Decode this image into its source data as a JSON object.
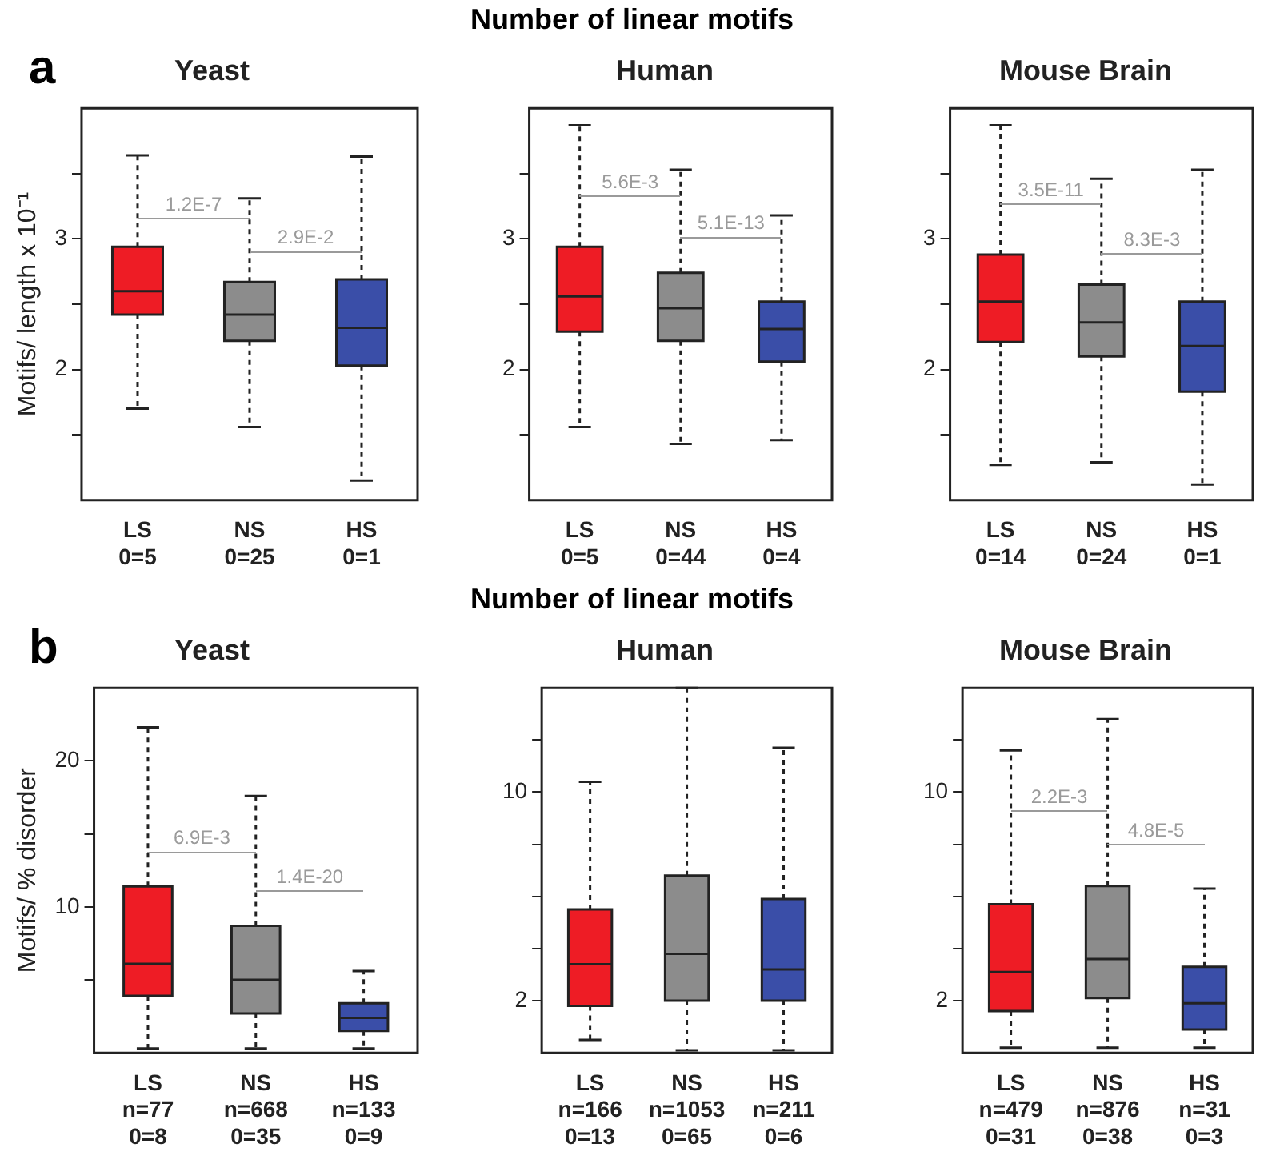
{
  "chart_data": [
    {
      "type": "box",
      "title": "Yeast",
      "ylabel": "Motifs/ length x 10⁻¹",
      "categories": [
        "LS\n0=5",
        "NS\n0=25",
        "HS\n0=1"
      ],
      "colors": [
        "#ee1c25",
        "#8c8c8c",
        "#3a4ea8"
      ],
      "line_style": "dashed",
      "ylim": [
        1,
        4
      ],
      "yticks": [
        {
          "value": 1.5,
          "label": null
        },
        2,
        {
          "value": 2.5,
          "label": null
        },
        3,
        {
          "value": 3.5,
          "label": null
        }
      ],
      "boxes": [
        {
          "low": 1.7,
          "q1": 2.42,
          "median": 2.6,
          "q3": 2.94,
          "high": 3.64
        },
        {
          "low": 1.56,
          "q1": 2.22,
          "median": 2.42,
          "q3": 2.67,
          "high": 3.31
        },
        {
          "low": 1.15,
          "q1": 2.03,
          "median": 2.32,
          "q3": 2.69,
          "high": 3.63
        }
      ],
      "annotations": [
        "a",
        "Number of linear motifs",
        {
          "text": "1.2E-7",
          "x": "LS\n0=5",
          "y": 3.16
        },
        {
          "text": "2.9E-2",
          "x": "NS\n0=25",
          "y": 2.91
        }
      ]
    },
    {
      "type": "box",
      "title": "Human",
      "categories": [
        "LS\n0=5",
        "NS\n0=44",
        "HS\n0=4"
      ],
      "colors": [
        "#ee1c25",
        "#8c8c8c",
        "#3a4ea8"
      ],
      "line_style": "dashed",
      "ylim": [
        1,
        4
      ],
      "yticks": [
        {
          "value": 1.5,
          "label": null
        },
        2,
        {
          "value": 2.5,
          "label": null
        },
        3,
        {
          "value": 3.5,
          "label": null
        }
      ],
      "boxes": [
        {
          "low": 1.56,
          "q1": 2.29,
          "median": 2.56,
          "q3": 2.94,
          "high": 3.87
        },
        {
          "low": 1.43,
          "q1": 2.22,
          "median": 2.47,
          "q3": 2.74,
          "high": 3.53
        },
        {
          "low": 1.46,
          "q1": 2.06,
          "median": 2.31,
          "q3": 2.52,
          "high": 3.18
        }
      ],
      "annotations": [
        {
          "text": "5.6E-3",
          "x": "LS\n0=5",
          "y": 3.33
        },
        {
          "text": "5.1E-13",
          "x": "NS\n0=44",
          "y": 3.02
        }
      ]
    },
    {
      "type": "box",
      "title": "Mouse Brain",
      "categories": [
        "LS\n0=14",
        "NS\n0=24",
        "HS\n0=1"
      ],
      "colors": [
        "#ee1c25",
        "#8c8c8c",
        "#3a4ea8"
      ],
      "line_style": "dashed",
      "ylim": [
        1,
        4
      ],
      "yticks": [
        {
          "value": 1.5,
          "label": null
        },
        2,
        {
          "value": 2.5,
          "label": null
        },
        3,
        {
          "value": 3.5,
          "label": null
        }
      ],
      "boxes": [
        {
          "low": 1.27,
          "q1": 2.21,
          "median": 2.52,
          "q3": 2.88,
          "high": 3.87
        },
        {
          "low": 1.29,
          "q1": 2.1,
          "median": 2.36,
          "q3": 2.65,
          "high": 3.46
        },
        {
          "low": 1.12,
          "q1": 1.83,
          "median": 2.18,
          "q3": 2.52,
          "high": 3.53
        }
      ],
      "annotations": [
        {
          "text": "3.5E-11",
          "x": "LS\n0=14",
          "y": 3.27
        },
        {
          "text": "8.3E-3",
          "x": "NS\n0=24",
          "y": 2.89
        }
      ]
    },
    {
      "type": "box",
      "title": "Yeast",
      "ylabel": "Motifs/ % disorder",
      "categories": [
        "LS\nn=77\n0=8",
        "NS\nn=668\n0=35",
        "HS\nn=133\n0=9"
      ],
      "colors": [
        "#ee1c25",
        "#8c8c8c",
        "#3a4ea8"
      ],
      "line_style": "dashed",
      "ylim": [
        0,
        25
      ],
      "yticks": [
        {
          "value": 5,
          "label": null
        },
        10,
        {
          "value": 15,
          "label": null
        },
        20
      ],
      "boxes": [
        {
          "low": 0.3,
          "q1": 3.9,
          "median": 6.1,
          "q3": 11.4,
          "high": 22.3
        },
        {
          "low": 0.3,
          "q1": 2.7,
          "median": 5,
          "q3": 8.7,
          "high": 17.6
        },
        {
          "low": 0.3,
          "q1": 1.5,
          "median": 2.4,
          "q3": 3.4,
          "high": 5.6
        }
      ],
      "annotations": [
        "b",
        "Number of linear motifs",
        {
          "text": "6.9E-3",
          "x": "LS\nn=77\n0=8",
          "y": 13.8
        },
        {
          "text": "1.4E-20",
          "x": "NS\nn=668\n0=35",
          "y": 11.1
        }
      ]
    },
    {
      "type": "box",
      "title": "Human",
      "categories": [
        "LS\nn=166\n0=13",
        "NS\nn=1053\n0=65",
        "HS\nn=211\n0=6"
      ],
      "colors": [
        "#ee1c25",
        "#8c8c8c",
        "#3a4ea8"
      ],
      "line_style": "dashed",
      "ylim": [
        0,
        14
      ],
      "yticks": [
        2,
        {
          "value": 4,
          "label": null
        },
        {
          "value": 6,
          "label": null
        },
        {
          "value": 8,
          "label": null
        },
        10,
        {
          "value": 12,
          "label": null
        }
      ],
      "boxes": [
        {
          "low": 0.5,
          "q1": 1.8,
          "median": 3.4,
          "q3": 5.5,
          "high": 10.4
        },
        {
          "low": 0.1,
          "q1": 2,
          "median": 3.8,
          "q3": 6.8,
          "high": 14
        },
        {
          "low": 0.1,
          "q1": 2,
          "median": 3.2,
          "q3": 5.9,
          "high": 11.7
        }
      ]
    },
    {
      "type": "box",
      "title": "Mouse Brain",
      "categories": [
        "LS\nn=479\n0=31",
        "NS\nn=876\n0=38",
        "HS\nn=31\n0=3"
      ],
      "colors": [
        "#ee1c25",
        "#8c8c8c",
        "#3a4ea8"
      ],
      "line_style": "dashed",
      "ylim": [
        0,
        14
      ],
      "yticks": [
        2,
        {
          "value": 4,
          "label": null
        },
        {
          "value": 6,
          "label": null
        },
        {
          "value": 8,
          "label": null
        },
        10,
        {
          "value": 12,
          "label": null
        }
      ],
      "boxes": [
        {
          "low": 0.2,
          "q1": 1.6,
          "median": 3.1,
          "q3": 5.7,
          "high": 11.6
        },
        {
          "low": 0.2,
          "q1": 2.1,
          "median": 3.6,
          "q3": 6.4,
          "high": 12.8
        },
        {
          "low": 0.2,
          "q1": 0.9,
          "median": 1.9,
          "q3": 3.3,
          "high": 6.3
        }
      ],
      "annotations": [
        {
          "text": "2.2E-3",
          "x": "LS\nn=479\n0=31",
          "y": 9.3
        },
        {
          "text": "4.8E-5",
          "x": "NS\nn=876\n0=38",
          "y": 8
        }
      ]
    }
  ]
}
